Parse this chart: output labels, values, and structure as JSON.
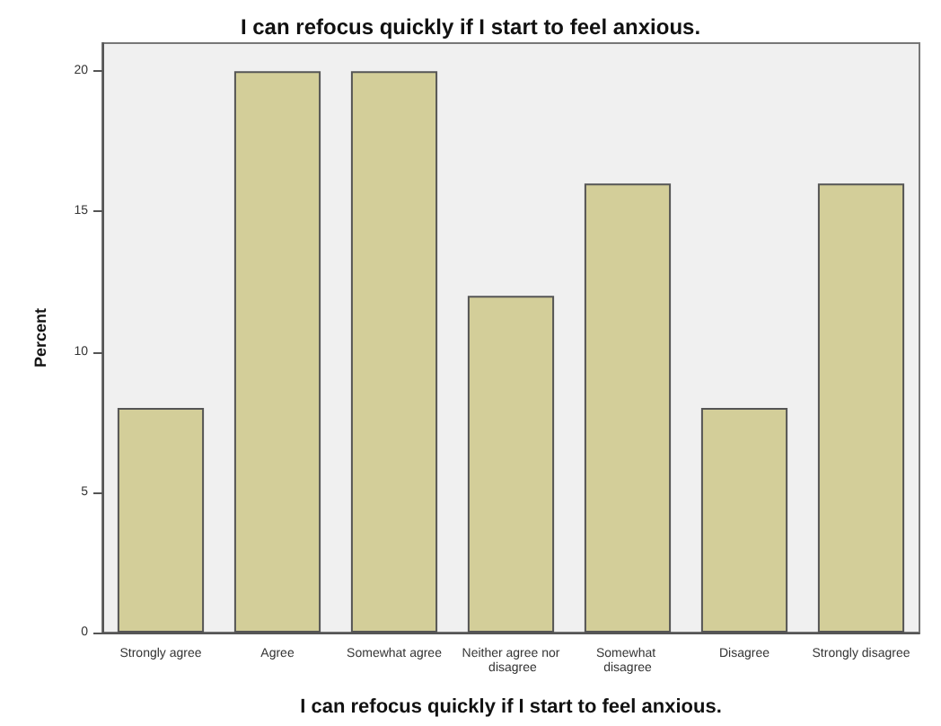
{
  "chart_data": {
    "type": "bar",
    "title": "I can refocus quickly if I start to feel anxious.",
    "xlabel": "I can refocus quickly if I start to feel anxious.",
    "ylabel": "Percent",
    "categories": [
      "Strongly agree",
      "Agree",
      "Somewhat agree",
      "Neither agree nor disagree",
      "Somewhat disagree",
      "Disagree",
      "Strongly disagree"
    ],
    "values": [
      8,
      20,
      20,
      12,
      16,
      8,
      16
    ],
    "color": "#d3ce99",
    "ylim": [
      0,
      21
    ],
    "yticks": [
      0,
      5,
      10,
      15,
      20
    ],
    "grid": false
  }
}
